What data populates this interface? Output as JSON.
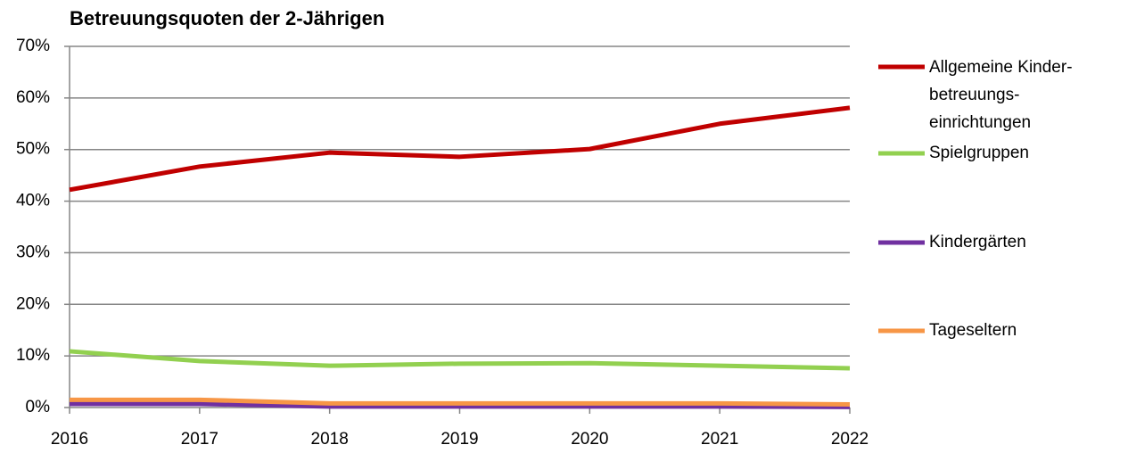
{
  "chart_data": {
    "type": "line",
    "title": "Betreuungsquoten der 2-Jährigen",
    "x": [
      2016,
      2017,
      2018,
      2019,
      2020,
      2021,
      2022
    ],
    "xlim": [
      2016,
      2022
    ],
    "xticks": [
      2016,
      2017,
      2018,
      2019,
      2020,
      2021,
      2022
    ],
    "ylim": [
      0,
      70
    ],
    "yticks": [
      {
        "value": 0,
        "label": "0%"
      },
      {
        "value": 10,
        "label": "10%"
      },
      {
        "value": 20,
        "label": "20%"
      },
      {
        "value": 30,
        "label": "30%"
      },
      {
        "value": 40,
        "label": "40%"
      },
      {
        "value": 50,
        "label": "50%"
      },
      {
        "value": 60,
        "label": "60%"
      },
      {
        "value": 70,
        "label": "70%"
      }
    ],
    "grid": true,
    "legend": "right",
    "series": [
      {
        "name": "Allgemeine Kinder-betreuungs-einrichtungen",
        "color": "#c00000",
        "values": [
          42.2,
          46.7,
          49.4,
          48.6,
          50.1,
          55.0,
          58.1
        ]
      },
      {
        "name": "Spielgruppen",
        "color": "#92d050",
        "values": [
          10.9,
          9.0,
          8.1,
          8.5,
          8.6,
          8.1,
          7.6
        ]
      },
      {
        "name": "Kindergärten",
        "color": "#7030a0",
        "values": [
          0.7,
          0.7,
          0.2,
          0.2,
          0.2,
          0.2,
          0.1
        ]
      },
      {
        "name": "Tageseltern",
        "color": "#f79646",
        "values": [
          1.5,
          1.5,
          0.8,
          0.8,
          0.8,
          0.8,
          0.6
        ]
      }
    ]
  }
}
